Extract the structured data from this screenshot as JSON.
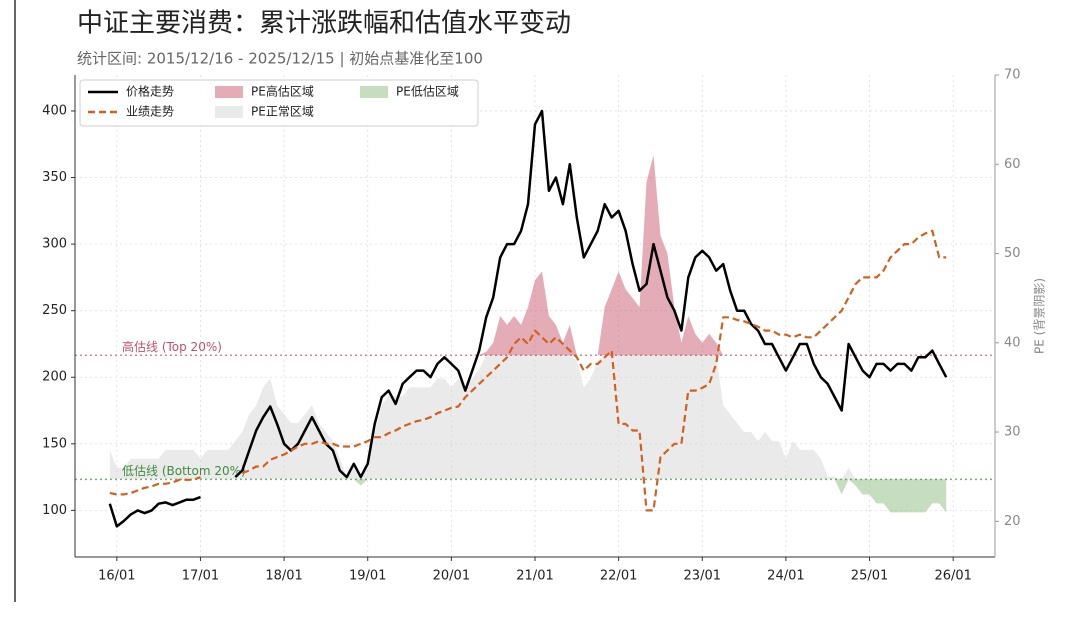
{
  "chart_data": {
    "type": "line",
    "title": "中证主要消费：累计涨跌幅和估值水平变动",
    "subtitle": "统计区间: 2015/12/16 - 2025/12/15 | 初始点基准化至100",
    "y2label": "PE (背景阴影)",
    "x": [
      "2015-12",
      "2016-01",
      "2016-02",
      "2016-03",
      "2016-04",
      "2016-05",
      "2016-06",
      "2016-07",
      "2016-08",
      "2016-09",
      "2016-10",
      "2016-11",
      "2016-12",
      "2017-01",
      "2017-02",
      "2017-03",
      "2017-04",
      "2017-05",
      "2017-06",
      "2017-07",
      "2017-08",
      "2017-09",
      "2017-10",
      "2017-11",
      "2017-12",
      "2018-01",
      "2018-02",
      "2018-03",
      "2018-04",
      "2018-05",
      "2018-06",
      "2018-07",
      "2018-08",
      "2018-09",
      "2018-10",
      "2018-11",
      "2018-12",
      "2019-01",
      "2019-02",
      "2019-03",
      "2019-04",
      "2019-05",
      "2019-06",
      "2019-07",
      "2019-08",
      "2019-09",
      "2019-10",
      "2019-11",
      "2019-12",
      "2020-01",
      "2020-02",
      "2020-03",
      "2020-04",
      "2020-05",
      "2020-06",
      "2020-07",
      "2020-08",
      "2020-09",
      "2020-10",
      "2020-11",
      "2020-12",
      "2021-01",
      "2021-02",
      "2021-03",
      "2021-04",
      "2021-05",
      "2021-06",
      "2021-07",
      "2021-08",
      "2021-09",
      "2021-10",
      "2021-11",
      "2021-12",
      "2022-01",
      "2022-02",
      "2022-03",
      "2022-04",
      "2022-05",
      "2022-06",
      "2022-07",
      "2022-08",
      "2022-09",
      "2022-10",
      "2022-11",
      "2022-12",
      "2023-01",
      "2023-02",
      "2023-03",
      "2023-04",
      "2023-05",
      "2023-06",
      "2023-07",
      "2023-08",
      "2023-09",
      "2023-10",
      "2023-11",
      "2023-12",
      "2024-01",
      "2024-02",
      "2024-03",
      "2024-04",
      "2024-05",
      "2024-06",
      "2024-07",
      "2024-08",
      "2024-09",
      "2024-10",
      "2024-11",
      "2024-12",
      "2025-01",
      "2025-02",
      "2025-03",
      "2025-04",
      "2025-05",
      "2025-06",
      "2025-07",
      "2025-08",
      "2025-09",
      "2025-10",
      "2025-11",
      "2025-12"
    ],
    "series": [
      {
        "name": "价格走势",
        "color": "#000000",
        "dash": false,
        "values": [
          105,
          88,
          92,
          97,
          100,
          98,
          100,
          105,
          106,
          104,
          106,
          108,
          108,
          110,
          null,
          null,
          null,
          null,
          125,
          130,
          145,
          160,
          170,
          178,
          165,
          150,
          145,
          150,
          160,
          170,
          160,
          150,
          145,
          130,
          125,
          135,
          125,
          135,
          165,
          185,
          190,
          180,
          195,
          200,
          205,
          205,
          200,
          210,
          215,
          210,
          205,
          190,
          205,
          220,
          245,
          260,
          290,
          300,
          300,
          310,
          330,
          390,
          400,
          340,
          350,
          330,
          360,
          320,
          290,
          300,
          310,
          330,
          320,
          325,
          310,
          285,
          265,
          270,
          300,
          280,
          260,
          250,
          235,
          275,
          290,
          295,
          290,
          280,
          285,
          265,
          250,
          250,
          240,
          235,
          225,
          225,
          215,
          205,
          215,
          225,
          225,
          210,
          200,
          195,
          185,
          175,
          225,
          215,
          205,
          200,
          210,
          210,
          205,
          210,
          210,
          205,
          215,
          215,
          220,
          210,
          200
        ]
      },
      {
        "name": "业绩走势",
        "color": "#d2601f",
        "dash": true,
        "values": [
          113,
          112,
          112,
          113,
          115,
          117,
          118,
          120,
          120,
          121,
          123,
          123,
          123,
          125,
          null,
          null,
          null,
          null,
          null,
          128,
          130,
          133,
          133,
          138,
          140,
          142,
          145,
          148,
          150,
          150,
          152,
          150,
          150,
          148,
          148,
          148,
          150,
          152,
          155,
          155,
          158,
          160,
          163,
          165,
          167,
          168,
          170,
          173,
          175,
          177,
          178,
          185,
          190,
          195,
          200,
          205,
          210,
          215,
          225,
          230,
          225,
          235,
          230,
          225,
          230,
          225,
          220,
          215,
          205,
          210,
          210,
          215,
          220,
          165,
          165,
          160,
          160,
          100,
          100,
          140,
          145,
          150,
          150,
          190,
          190,
          192,
          195,
          210,
          245,
          245,
          243,
          242,
          240,
          238,
          235,
          235,
          232,
          232,
          230,
          232,
          230,
          230,
          235,
          240,
          245,
          250,
          260,
          270,
          275,
          275,
          275,
          280,
          290,
          295,
          300,
          300,
          305,
          308,
          310,
          290,
          290
        ]
      }
    ],
    "pe": {
      "axis": "y2",
      "values": [
        28,
        26,
        26,
        27,
        27,
        27,
        27,
        27,
        28,
        28,
        28,
        28,
        28,
        27,
        28,
        28,
        28,
        28,
        29,
        30,
        32,
        33,
        35,
        36,
        33,
        32,
        31,
        31,
        32,
        33,
        31,
        30,
        29,
        27,
        25,
        26,
        24,
        26,
        30,
        33,
        34,
        34,
        34,
        35,
        35,
        35,
        35,
        36,
        36,
        35,
        36,
        35,
        36,
        37,
        39,
        40,
        43,
        42,
        43,
        42,
        44,
        47,
        48,
        43,
        42,
        40,
        42,
        38,
        35,
        36,
        38,
        44,
        46,
        48,
        46,
        45,
        44,
        58,
        61,
        52,
        50,
        44,
        40,
        43,
        41,
        40,
        41,
        40,
        33,
        32,
        31,
        30,
        30,
        29,
        30,
        29,
        29,
        27,
        29,
        28,
        28,
        28,
        27,
        25,
        25,
        23,
        26,
        24,
        23,
        23,
        22,
        22,
        21,
        21,
        21,
        21,
        21,
        21,
        22,
        22,
        21
      ]
    },
    "zones": [
      {
        "name": "PE高估区域",
        "color": "#c95a70"
      },
      {
        "name": "PE正常区域",
        "color": "#d6d6d6"
      },
      {
        "name": "PE低估区域",
        "color": "#8dbb7f"
      }
    ],
    "thresholds": [
      {
        "label": "高估线 (Top 20%)",
        "value": 38.6,
        "color": "#c0506a"
      },
      {
        "label": "低估线 (Bottom 20%)",
        "value": 24.7,
        "color": "#3f8a3f"
      }
    ],
    "xlim": [
      "2015-07",
      "2026-07"
    ],
    "xticks": [
      {
        "value": "2016-01",
        "label": "16/01"
      },
      {
        "value": "2017-01",
        "label": "17/01"
      },
      {
        "value": "2018-01",
        "label": "18/01"
      },
      {
        "value": "2019-01",
        "label": "19/01"
      },
      {
        "value": "2020-01",
        "label": "20/01"
      },
      {
        "value": "2021-01",
        "label": "21/01"
      },
      {
        "value": "2022-01",
        "label": "22/01"
      },
      {
        "value": "2023-01",
        "label": "23/01"
      },
      {
        "value": "2024-01",
        "label": "24/01"
      },
      {
        "value": "2025-01",
        "label": "25/01"
      },
      {
        "value": "2026-01",
        "label": "26/01"
      }
    ],
    "ylim": [
      65,
      427
    ],
    "yticks": [
      100,
      150,
      200,
      250,
      300,
      350,
      400
    ],
    "y2lim": [
      16,
      70
    ],
    "y2ticks": [
      20,
      30,
      40,
      50,
      60,
      70
    ],
    "grid": true,
    "legend": "upper left"
  }
}
